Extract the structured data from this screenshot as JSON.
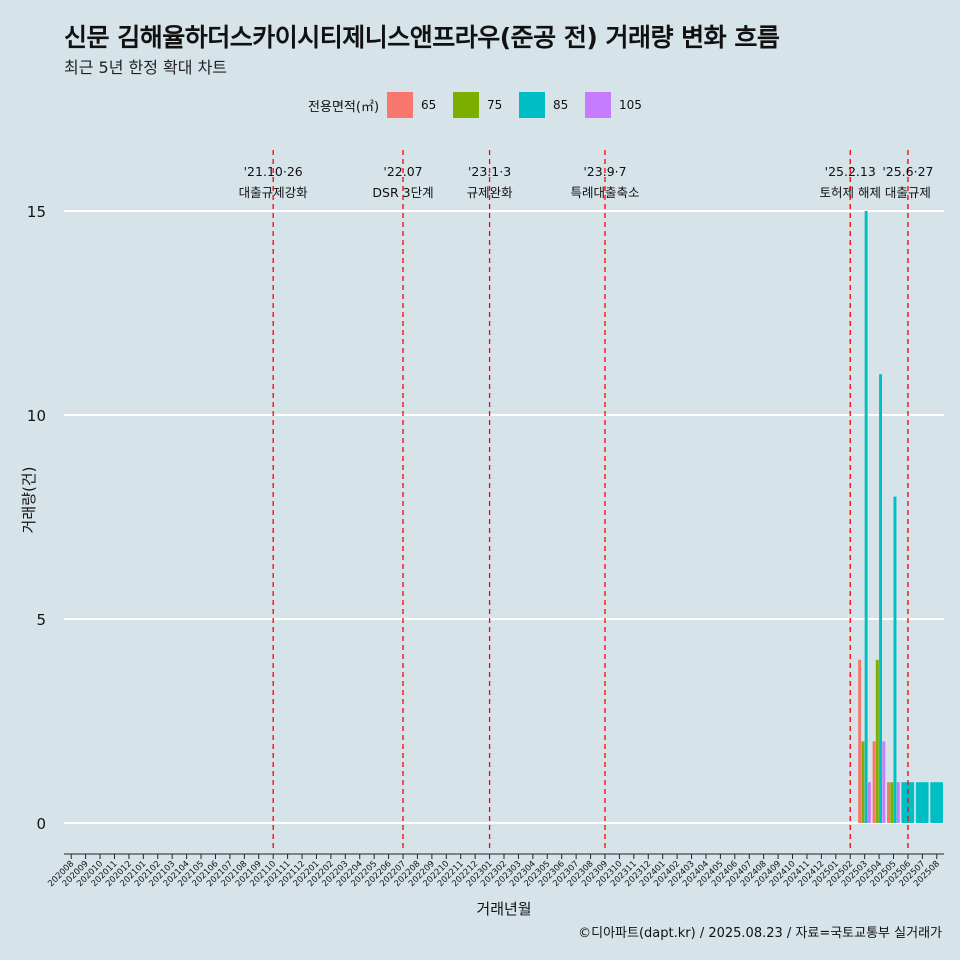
{
  "title": "신문 김해율하더스카이시티제니스앤프라우(준공 전) 거래량 변화 흐름",
  "subtitle": "최근 5년 한정 확대 차트",
  "caption": "©디아파트(dapt.kr) / 2025.08.23 / 자료=국토교통부 실거래가",
  "legend": {
    "title": "전용면적(㎡)",
    "items": [
      {
        "label": "65",
        "color": "#f8766d"
      },
      {
        "label": "75",
        "color": "#7cae00"
      },
      {
        "label": "85",
        "color": "#00bfc4"
      },
      {
        "label": "105",
        "color": "#c77cff"
      }
    ]
  },
  "chart_data": {
    "type": "bar",
    "xlabel": "거래년월",
    "ylabel": "거래량(건)",
    "ylim": [
      0,
      15
    ],
    "yticks": [
      0,
      5,
      10,
      15
    ],
    "categories": [
      "202008",
      "202009",
      "202010",
      "202011",
      "202012",
      "202101",
      "202102",
      "202103",
      "202104",
      "202105",
      "202106",
      "202107",
      "202108",
      "202109",
      "202110",
      "202111",
      "202112",
      "202201",
      "202202",
      "202203",
      "202204",
      "202205",
      "202206",
      "202207",
      "202208",
      "202209",
      "202210",
      "202211",
      "202212",
      "202301",
      "202302",
      "202303",
      "202304",
      "202305",
      "202306",
      "202307",
      "202308",
      "202309",
      "202310",
      "202311",
      "202312",
      "202401",
      "202402",
      "202403",
      "202404",
      "202405",
      "202406",
      "202407",
      "202408",
      "202409",
      "202410",
      "202411",
      "202412",
      "202501",
      "202502",
      "202503",
      "202504",
      "202505",
      "202506",
      "202507",
      "202508"
    ],
    "series": [
      {
        "name": "65",
        "color": "#f8766d",
        "values": {
          "202503": 4,
          "202504": 2,
          "202505": 1
        }
      },
      {
        "name": "75",
        "color": "#7cae00",
        "values": {
          "202503": 2,
          "202504": 4,
          "202505": 1
        }
      },
      {
        "name": "85",
        "color": "#00bfc4",
        "values": {
          "202503": 15,
          "202504": 11,
          "202505": 8,
          "202506": 1,
          "202507": 1,
          "202508": 1
        }
      },
      {
        "name": "105",
        "color": "#c77cff",
        "values": {
          "202503": 1,
          "202504": 2,
          "202505": 1
        }
      }
    ],
    "events": [
      {
        "month": "202110",
        "date": "'21.10·26",
        "label": "대출규제강화"
      },
      {
        "month": "202207",
        "date": "'22.07",
        "label": "DSR 3단계"
      },
      {
        "month": "202301",
        "date": "'23.1·3",
        "label": "규제완화"
      },
      {
        "month": "202309",
        "date": "'23.9·7",
        "label": "특례대출축소"
      },
      {
        "month": "202502",
        "date": "'25.2.13",
        "label": "토허제 해제"
      },
      {
        "month": "202506",
        "date": "'25.6·27",
        "label": "대출규제"
      }
    ]
  }
}
